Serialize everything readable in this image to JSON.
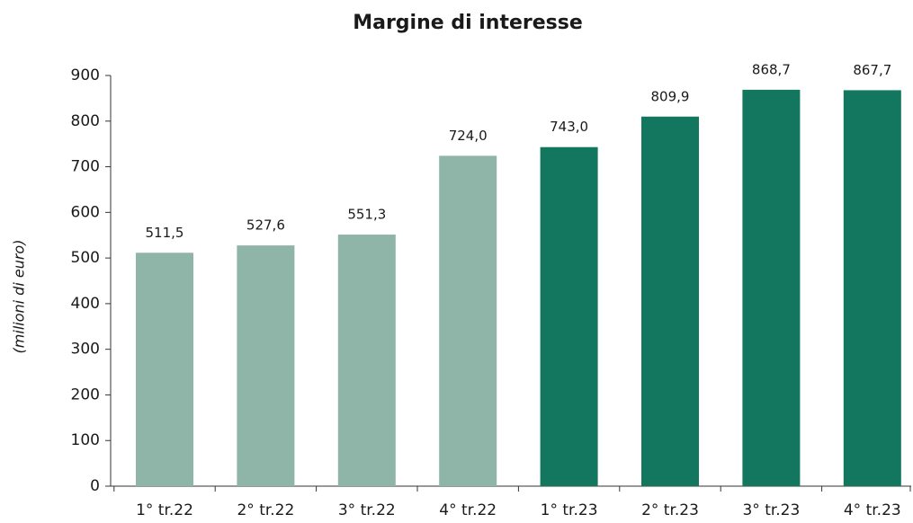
{
  "chart_data": {
    "type": "bar",
    "title": "Margine di interesse",
    "y_label": "(milioni di euro)",
    "categories": [
      "1° tr.22",
      "2° tr.22",
      "3° tr.22",
      "4° tr.22",
      "1° tr.23",
      "2° tr.23",
      "3° tr.23",
      "4° tr.23"
    ],
    "values": [
      511.5,
      527.6,
      551.3,
      724.0,
      743.0,
      809.9,
      868.7,
      867.7
    ],
    "value_labels": [
      "511,5",
      "527,6",
      "551,3",
      "724,0",
      "743,0",
      "809,9",
      "868,7",
      "867,7"
    ],
    "colors": [
      "#8fb5a8",
      "#8fb5a8",
      "#8fb5a8",
      "#8fb5a8",
      "#12775e",
      "#12775e",
      "#12775e",
      "#12775e"
    ],
    "ylim": [
      0,
      900
    ],
    "yticks": [
      0,
      100,
      200,
      300,
      400,
      500,
      600,
      700,
      800,
      900
    ],
    "grid": false
  }
}
